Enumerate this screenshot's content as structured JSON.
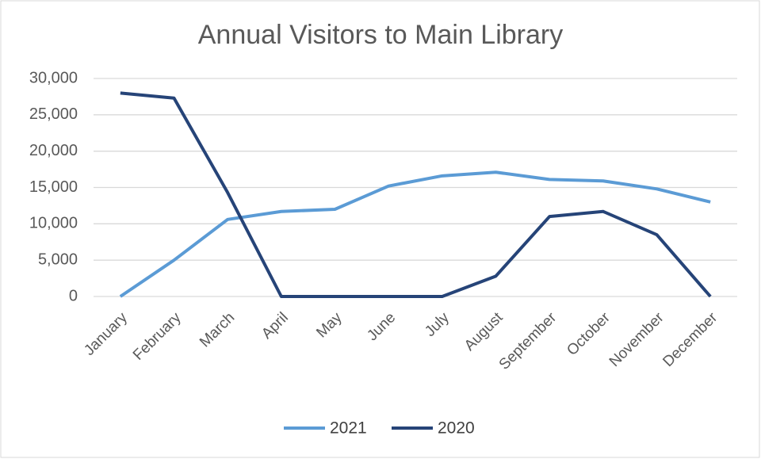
{
  "chart_data": {
    "type": "line",
    "title": "Annual Visitors to Main Library",
    "categories": [
      "January",
      "February",
      "March",
      "April",
      "May",
      "June",
      "July",
      "August",
      "September",
      "October",
      "November",
      "December"
    ],
    "series": [
      {
        "name": "2021",
        "color": "#5b9bd5",
        "values": [
          0,
          5000,
          10600,
          11700,
          12000,
          15200,
          16600,
          17100,
          16100,
          15900,
          14800,
          13000
        ]
      },
      {
        "name": "2020",
        "color": "#264478",
        "values": [
          28000,
          27300,
          14300,
          0,
          0,
          0,
          0,
          2800,
          11000,
          11700,
          8500,
          0
        ]
      }
    ],
    "ylim": [
      0,
      30000
    ],
    "yticks": [
      0,
      {
        "value": 5000,
        "label": "5,000"
      },
      {
        "value": 10000,
        "label": "10,000"
      },
      {
        "value": 15000,
        "label": "15,000"
      },
      {
        "value": 20000,
        "label": "20,000"
      },
      {
        "value": 25000,
        "label": "25,000"
      },
      {
        "value": 30000,
        "label": "30,000"
      }
    ],
    "grid": true,
    "legend": "bottom"
  }
}
